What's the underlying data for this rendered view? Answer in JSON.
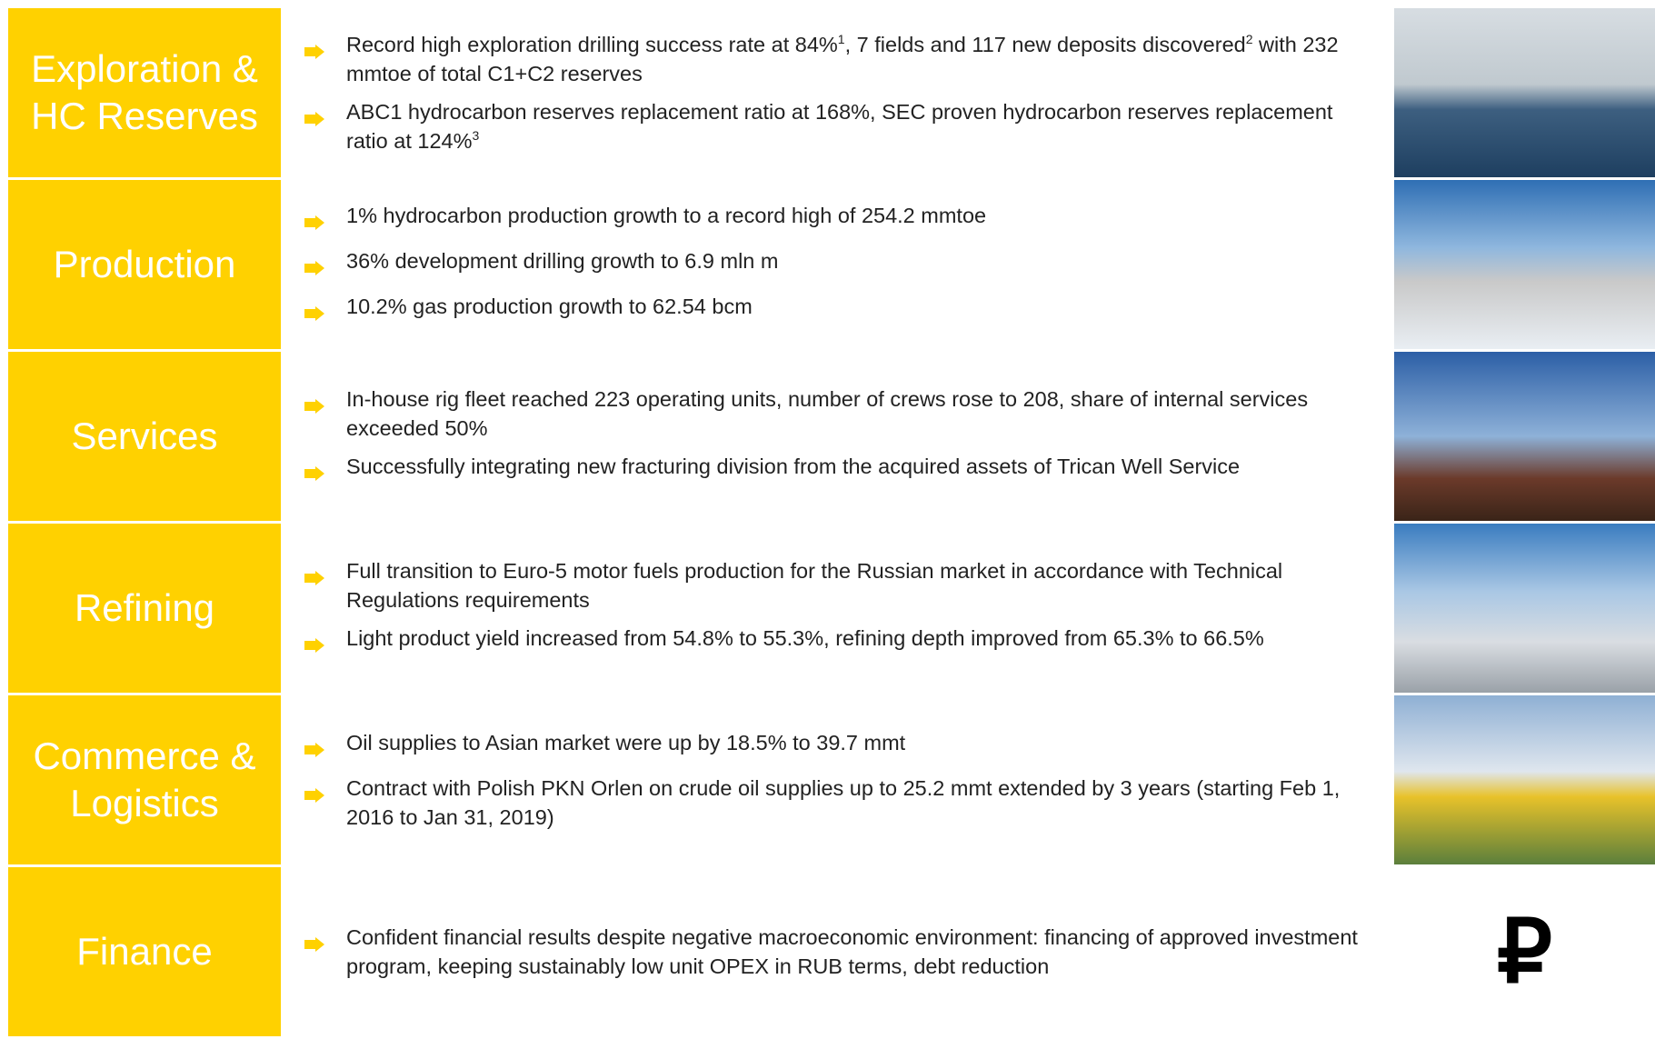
{
  "sections": [
    {
      "title": "Exploration & HC Reserves",
      "bullets": [
        [
          {
            "text": "Record high exploration drilling success rate at 84%"
          },
          {
            "sup": "1"
          },
          {
            "text": ", 7 fields and 117 new deposits discovered"
          },
          {
            "sup": "2"
          },
          {
            "text": " with 232 mmtoe of total C1+C2 reserves"
          }
        ],
        [
          {
            "text": "ABC1 hydrocarbon reserves replacement ratio at 168%, SEC proven hydrocarbon  reserves replacement ratio at 124%"
          },
          {
            "sup": "3"
          }
        ]
      ]
    },
    {
      "title": "Production",
      "bullets": [
        [
          {
            "text": "1% hydrocarbon production growth to a record high of 254.2 mmtoe"
          }
        ],
        [
          {
            "text": "36% development drilling growth to 6.9 mln m"
          }
        ],
        [
          {
            "text": "10.2% gas production growth to 62.54 bcm"
          }
        ]
      ]
    },
    {
      "title": "Services",
      "bullets": [
        [
          {
            "text": "In-house rig fleet reached 223 operating units, number of crews rose to 208, share of internal services exceeded 50%"
          }
        ],
        [
          {
            "text": "Successfully integrating new fracturing division from the acquired assets of Trican Well Service"
          }
        ]
      ]
    },
    {
      "title": "Refining",
      "bullets": [
        [
          {
            "text": "Full transition to Euro-5 motor fuels production for the Russian market in accordance with Technical Regulations requirements"
          }
        ],
        [
          {
            "text": "Light product yield increased from 54.8% to 55.3%, refining depth improved from 65.3% to 66.5%"
          }
        ]
      ]
    },
    {
      "title": "Commerce & Logistics",
      "bullets": [
        [
          {
            "text": "Oil supplies to Asian market were up by 18.5% to 39.7 mmt"
          }
        ],
        [
          {
            "text": "Contract with Polish PKN Orlen on crude oil supplies up to 25.2 mmt extended by 3 years (starting Feb 1, 2016 to Jan 31, 2019)"
          }
        ]
      ]
    },
    {
      "title": "Finance",
      "bullets": [
        [
          {
            "text": "Confident financial results despite negative macroeconomic environment: financing of approved investment program, keeping sustainably low unit OPEX in RUB terms, debt reduction"
          }
        ]
      ]
    }
  ],
  "finance_icon": "₽"
}
